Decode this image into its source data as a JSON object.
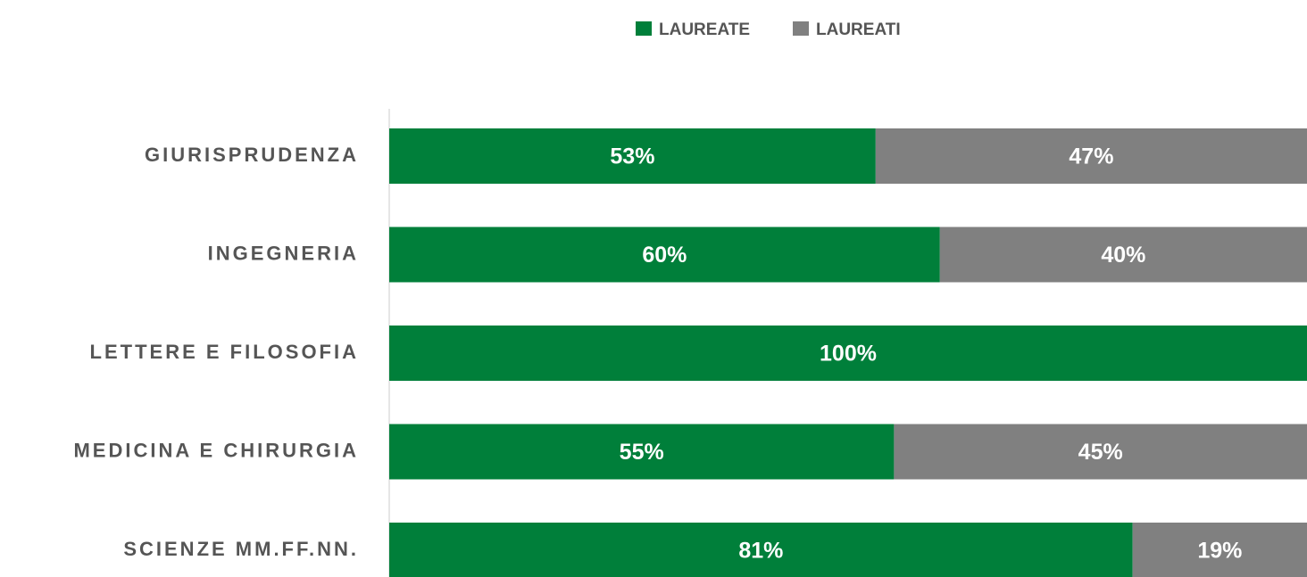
{
  "chart_data": {
    "type": "stacked-bar-horizontal",
    "categories": [
      "GIURISPRUDENZA",
      "INGEGNERIA",
      "LETTERE E FILOSOFIA",
      "MEDICINA E CHIRURGIA",
      "SCIENZE MM.FF.NN."
    ],
    "series": [
      {
        "name": "LAUREATE",
        "color": "#007f3a",
        "values": [
          53,
          60,
          100,
          55,
          81
        ],
        "value_labels": [
          "53%",
          "60%",
          "100%",
          "55%",
          "81%"
        ]
      },
      {
        "name": "LAUREATI",
        "color": "#808080",
        "values": [
          47,
          40,
          0,
          45,
          19
        ],
        "value_labels": [
          "47%",
          "40%",
          null,
          "45%",
          "19%"
        ]
      }
    ],
    "xlim": [
      0,
      100
    ],
    "legend": "top"
  }
}
